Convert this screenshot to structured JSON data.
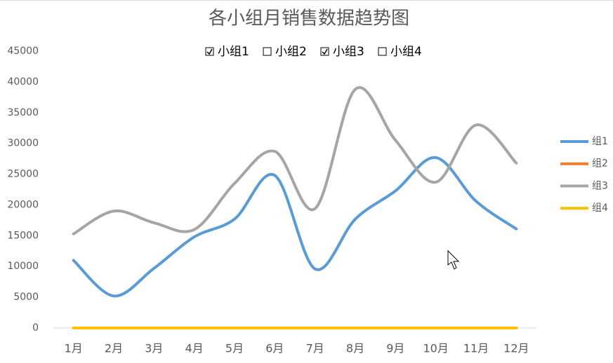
{
  "chart_data": {
    "type": "line",
    "title": "各小组月销售数据趋势图",
    "filters": [
      {
        "label": "小组1",
        "checked": true
      },
      {
        "label": "小组2",
        "checked": false
      },
      {
        "label": "小组3",
        "checked": true
      },
      {
        "label": "小组4",
        "checked": false
      }
    ],
    "categories": [
      "1月",
      "2月",
      "3月",
      "4月",
      "5月",
      "6月",
      "7月",
      "8月",
      "9月",
      "10月",
      "11月",
      "12月"
    ],
    "series": [
      {
        "name": "组1",
        "color": "#5b9bd5",
        "values": [
          11000,
          5200,
          9700,
          14800,
          17700,
          24800,
          9600,
          17700,
          22300,
          27700,
          20600,
          16100
        ]
      },
      {
        "name": "组2",
        "color": "#ed7d31",
        "values": [
          0,
          0,
          0,
          0,
          0,
          0,
          0,
          0,
          0,
          0,
          0,
          0
        ]
      },
      {
        "name": "组3",
        "color": "#a5a5a5",
        "values": [
          15300,
          19000,
          17100,
          16000,
          23500,
          28700,
          19400,
          38800,
          30500,
          23700,
          33000,
          26800
        ]
      },
      {
        "name": "组4",
        "color": "#ffc000",
        "values": [
          0,
          0,
          0,
          0,
          0,
          0,
          0,
          0,
          0,
          0,
          0,
          0
        ]
      }
    ],
    "ylim": [
      0,
      45000
    ],
    "yticks": [
      0,
      5000,
      10000,
      15000,
      20000,
      25000,
      30000,
      35000,
      40000,
      45000
    ],
    "grid": false,
    "smooth": true,
    "legend": "right"
  }
}
